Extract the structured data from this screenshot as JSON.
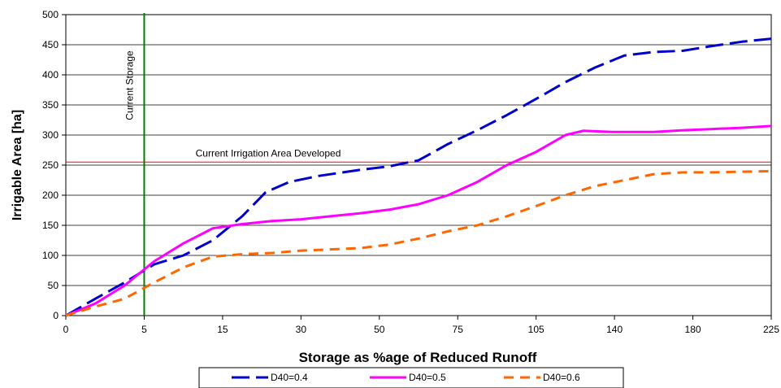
{
  "chart_data": {
    "type": "line",
    "title": "",
    "xlabel": "Storage as %age of Reduced Runoff",
    "ylabel": "Irrigable Area [ha]",
    "ylim": [
      0,
      500
    ],
    "y_ticks": [
      0,
      50,
      100,
      150,
      200,
      250,
      300,
      350,
      400,
      450,
      500
    ],
    "x_tick_labels": [
      "0",
      "5",
      "15",
      "30",
      "50",
      "75",
      "105",
      "140",
      "180",
      "225"
    ],
    "grid": "horizontal",
    "legend_position": "bottom",
    "series": [
      {
        "name": "D40=0.4",
        "color": "#0000cc",
        "dash": "long-dash",
        "points": [
          [
            0,
            0
          ],
          [
            0.5,
            28
          ],
          [
            1,
            55
          ],
          [
            1.5,
            85
          ],
          [
            2,
            100
          ],
          [
            2.5,
            125
          ],
          [
            3,
            165
          ],
          [
            3.4,
            205
          ],
          [
            3.8,
            222
          ],
          [
            4.3,
            232
          ],
          [
            5,
            242
          ],
          [
            5.5,
            248
          ],
          [
            6.0,
            258
          ],
          [
            6.5,
            285
          ],
          [
            7,
            308
          ],
          [
            7.5,
            333
          ],
          [
            8,
            360
          ],
          [
            8.5,
            388
          ],
          [
            9,
            412
          ],
          [
            9.5,
            432
          ],
          [
            10,
            438
          ],
          [
            10.5,
            440
          ],
          [
            11,
            448
          ],
          [
            11.5,
            455
          ],
          [
            12,
            460
          ]
        ]
      },
      {
        "name": "D40=0.5",
        "color": "#ff00ff",
        "dash": "solid",
        "points": [
          [
            0,
            0
          ],
          [
            0.5,
            20
          ],
          [
            1,
            50
          ],
          [
            1.5,
            90
          ],
          [
            2,
            120
          ],
          [
            2.5,
            145
          ],
          [
            3,
            152
          ],
          [
            3.5,
            157
          ],
          [
            4,
            160
          ],
          [
            4.5,
            165
          ],
          [
            5,
            170
          ],
          [
            5.5,
            176
          ],
          [
            6,
            185
          ],
          [
            6.5,
            200
          ],
          [
            7,
            222
          ],
          [
            7.5,
            250
          ],
          [
            8,
            272
          ],
          [
            8.5,
            300
          ],
          [
            8.8,
            307
          ],
          [
            9.3,
            305
          ],
          [
            10,
            305
          ],
          [
            10.5,
            308
          ],
          [
            11,
            310
          ],
          [
            11.5,
            312
          ],
          [
            12,
            315
          ]
        ]
      },
      {
        "name": "D40=0.6",
        "color": "#ff6600",
        "dash": "dash",
        "points": [
          [
            0,
            0
          ],
          [
            0.5,
            15
          ],
          [
            1,
            28
          ],
          [
            1.5,
            55
          ],
          [
            2,
            80
          ],
          [
            2.5,
            98
          ],
          [
            3,
            102
          ],
          [
            3.5,
            104
          ],
          [
            4,
            108
          ],
          [
            4.5,
            110
          ],
          [
            5,
            112
          ],
          [
            5.5,
            118
          ],
          [
            6,
            128
          ],
          [
            6.5,
            140
          ],
          [
            7,
            150
          ],
          [
            7.5,
            165
          ],
          [
            8,
            182
          ],
          [
            8.5,
            200
          ],
          [
            9,
            215
          ],
          [
            9.5,
            225
          ],
          [
            10,
            235
          ],
          [
            10.5,
            238
          ],
          [
            11,
            238
          ],
          [
            11.5,
            239
          ],
          [
            12,
            240
          ]
        ]
      }
    ],
    "annotations": [
      {
        "text": "Current Storage",
        "type": "vertical-line",
        "x": 1,
        "color": "#008000"
      },
      {
        "text": "Current Irrigation Area Developed",
        "type": "horizontal-line",
        "y": 255,
        "color": "#ff0000"
      }
    ]
  }
}
